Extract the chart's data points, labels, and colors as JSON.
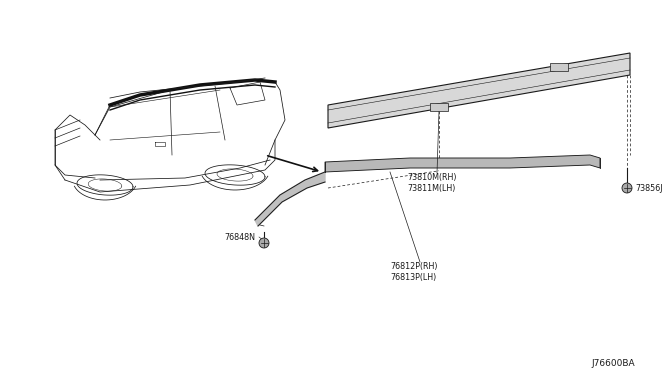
{
  "background_color": "#ffffff",
  "fig_width": 6.4,
  "fig_height": 3.72,
  "diagram_id": "J76600BA",
  "parts": [
    {
      "id": "73810M(RH)",
      "secondary": "73811M(LH)"
    },
    {
      "id": "76812P(RH)",
      "secondary": "76813P(LH)"
    },
    {
      "id": "73856J"
    },
    {
      "id": "76848N"
    }
  ],
  "line_color": "#1a1a1a",
  "text_color": "#1a1a1a",
  "font_size": 5.8,
  "font_size_id": 6.5
}
